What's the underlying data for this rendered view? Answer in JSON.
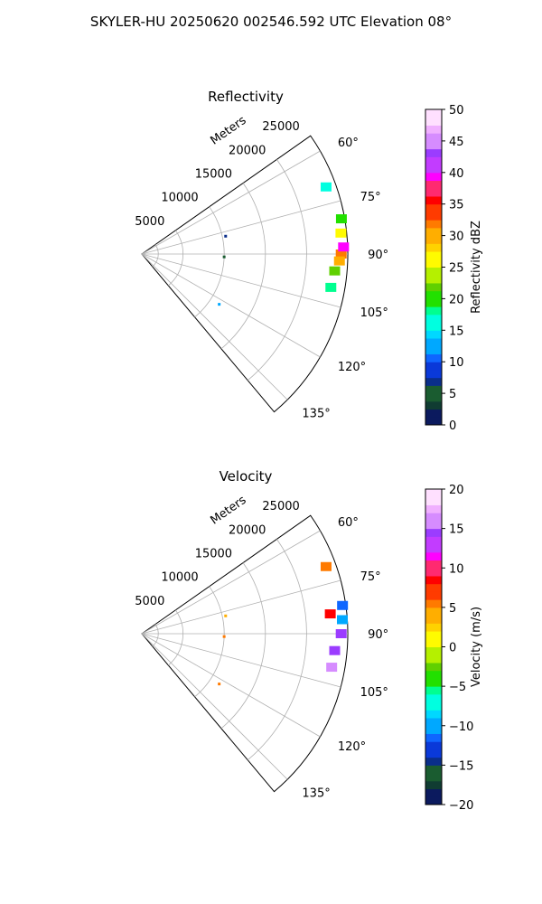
{
  "figure_title": "SKYLER-HU  20250620  002546.592 UTC Elevation 08°",
  "chart_data": [
    {
      "type": "polar-sector-radar",
      "title": "Reflectivity",
      "range_label": "Meters",
      "range_ticks": [
        5000,
        10000,
        15000,
        20000,
        25000
      ],
      "range_limit": [
        0,
        25000
      ],
      "azimuth_ticks_deg": [
        60,
        75,
        90,
        105,
        120,
        135
      ],
      "azimuth_limit_deg": [
        55,
        140
      ],
      "grid": true,
      "colorbar": {
        "label": "Reflectivity dBZ",
        "min": 0,
        "max": 50,
        "ticks": [
          0,
          5,
          10,
          15,
          20,
          25,
          30,
          35,
          40,
          45,
          50
        ],
        "levels": 40,
        "colors": [
          "#0b1a5e",
          "#103c32",
          "#1a5c30",
          "#0a2e8a",
          "#0a39d9",
          "#0f66ff",
          "#00a8ff",
          "#00d8ff",
          "#00ffe0",
          "#00ff90",
          "#22e000",
          "#60d000",
          "#b5f000",
          "#fffb00",
          "#ffd200",
          "#ffae00",
          "#ff7a00",
          "#ff3b00",
          "#ff0000",
          "#ff2a70",
          "#ff00ff",
          "#c23cff",
          "#9b3cff",
          "#d68cff",
          "#f0b0ff",
          "#ffe0ff"
        ]
      },
      "echoes": [
        {
          "az": 90,
          "r": 24200,
          "dbz": 32
        },
        {
          "az": 88,
          "r": 24500,
          "dbz": 40
        },
        {
          "az": 92,
          "r": 24000,
          "dbz": 30
        },
        {
          "az": 95,
          "r": 23500,
          "dbz": 22
        },
        {
          "az": 84,
          "r": 24300,
          "dbz": 25
        },
        {
          "az": 80,
          "r": 24600,
          "dbz": 20
        },
        {
          "az": 100,
          "r": 23300,
          "dbz": 18
        },
        {
          "az": 70,
          "r": 23800,
          "dbz": 16
        },
        {
          "az": 78,
          "r": 10400,
          "dbz": 6
        },
        {
          "az": 92,
          "r": 10000,
          "dbz": 5
        },
        {
          "az": 123,
          "r": 11200,
          "dbz": 13
        }
      ]
    },
    {
      "type": "polar-sector-radar",
      "title": "Velocity",
      "range_label": "Meters",
      "range_ticks": [
        5000,
        10000,
        15000,
        20000,
        25000
      ],
      "range_limit": [
        0,
        25000
      ],
      "azimuth_ticks_deg": [
        60,
        75,
        90,
        105,
        120,
        135
      ],
      "azimuth_limit_deg": [
        55,
        140
      ],
      "grid": true,
      "colorbar": {
        "label": "Velocity (m/s)",
        "min": -20,
        "max": 20,
        "ticks": [
          -20,
          -15,
          -10,
          -5,
          0,
          5,
          10,
          15,
          20
        ],
        "levels": 40,
        "colors": [
          "#0b1a5e",
          "#103c32",
          "#1a5c30",
          "#0a2e8a",
          "#0a39d9",
          "#0f66ff",
          "#00a8ff",
          "#00d8ff",
          "#00ffe0",
          "#00ff90",
          "#22e000",
          "#60d000",
          "#b5f000",
          "#fffb00",
          "#ffd200",
          "#ffae00",
          "#ff7a00",
          "#ff3b00",
          "#ff0000",
          "#ff2a70",
          "#ff00ff",
          "#c23cff",
          "#9b3cff",
          "#d68cff",
          "#f0b0ff",
          "#ffe0ff"
        ]
      },
      "echoes": [
        {
          "az": 90,
          "r": 24200,
          "v": 15
        },
        {
          "az": 86,
          "r": 24400,
          "v": -10
        },
        {
          "az": 82,
          "r": 24600,
          "v": -12
        },
        {
          "az": 95,
          "r": 23500,
          "v": 14
        },
        {
          "az": 100,
          "r": 23400,
          "v": 16
        },
        {
          "az": 84,
          "r": 23000,
          "v": 8
        },
        {
          "az": 70,
          "r": 23800,
          "v": 5
        },
        {
          "az": 78,
          "r": 10400,
          "v": 4
        },
        {
          "az": 92,
          "r": 10000,
          "v": 5
        },
        {
          "az": 123,
          "r": 11200,
          "v": 6
        }
      ]
    }
  ]
}
